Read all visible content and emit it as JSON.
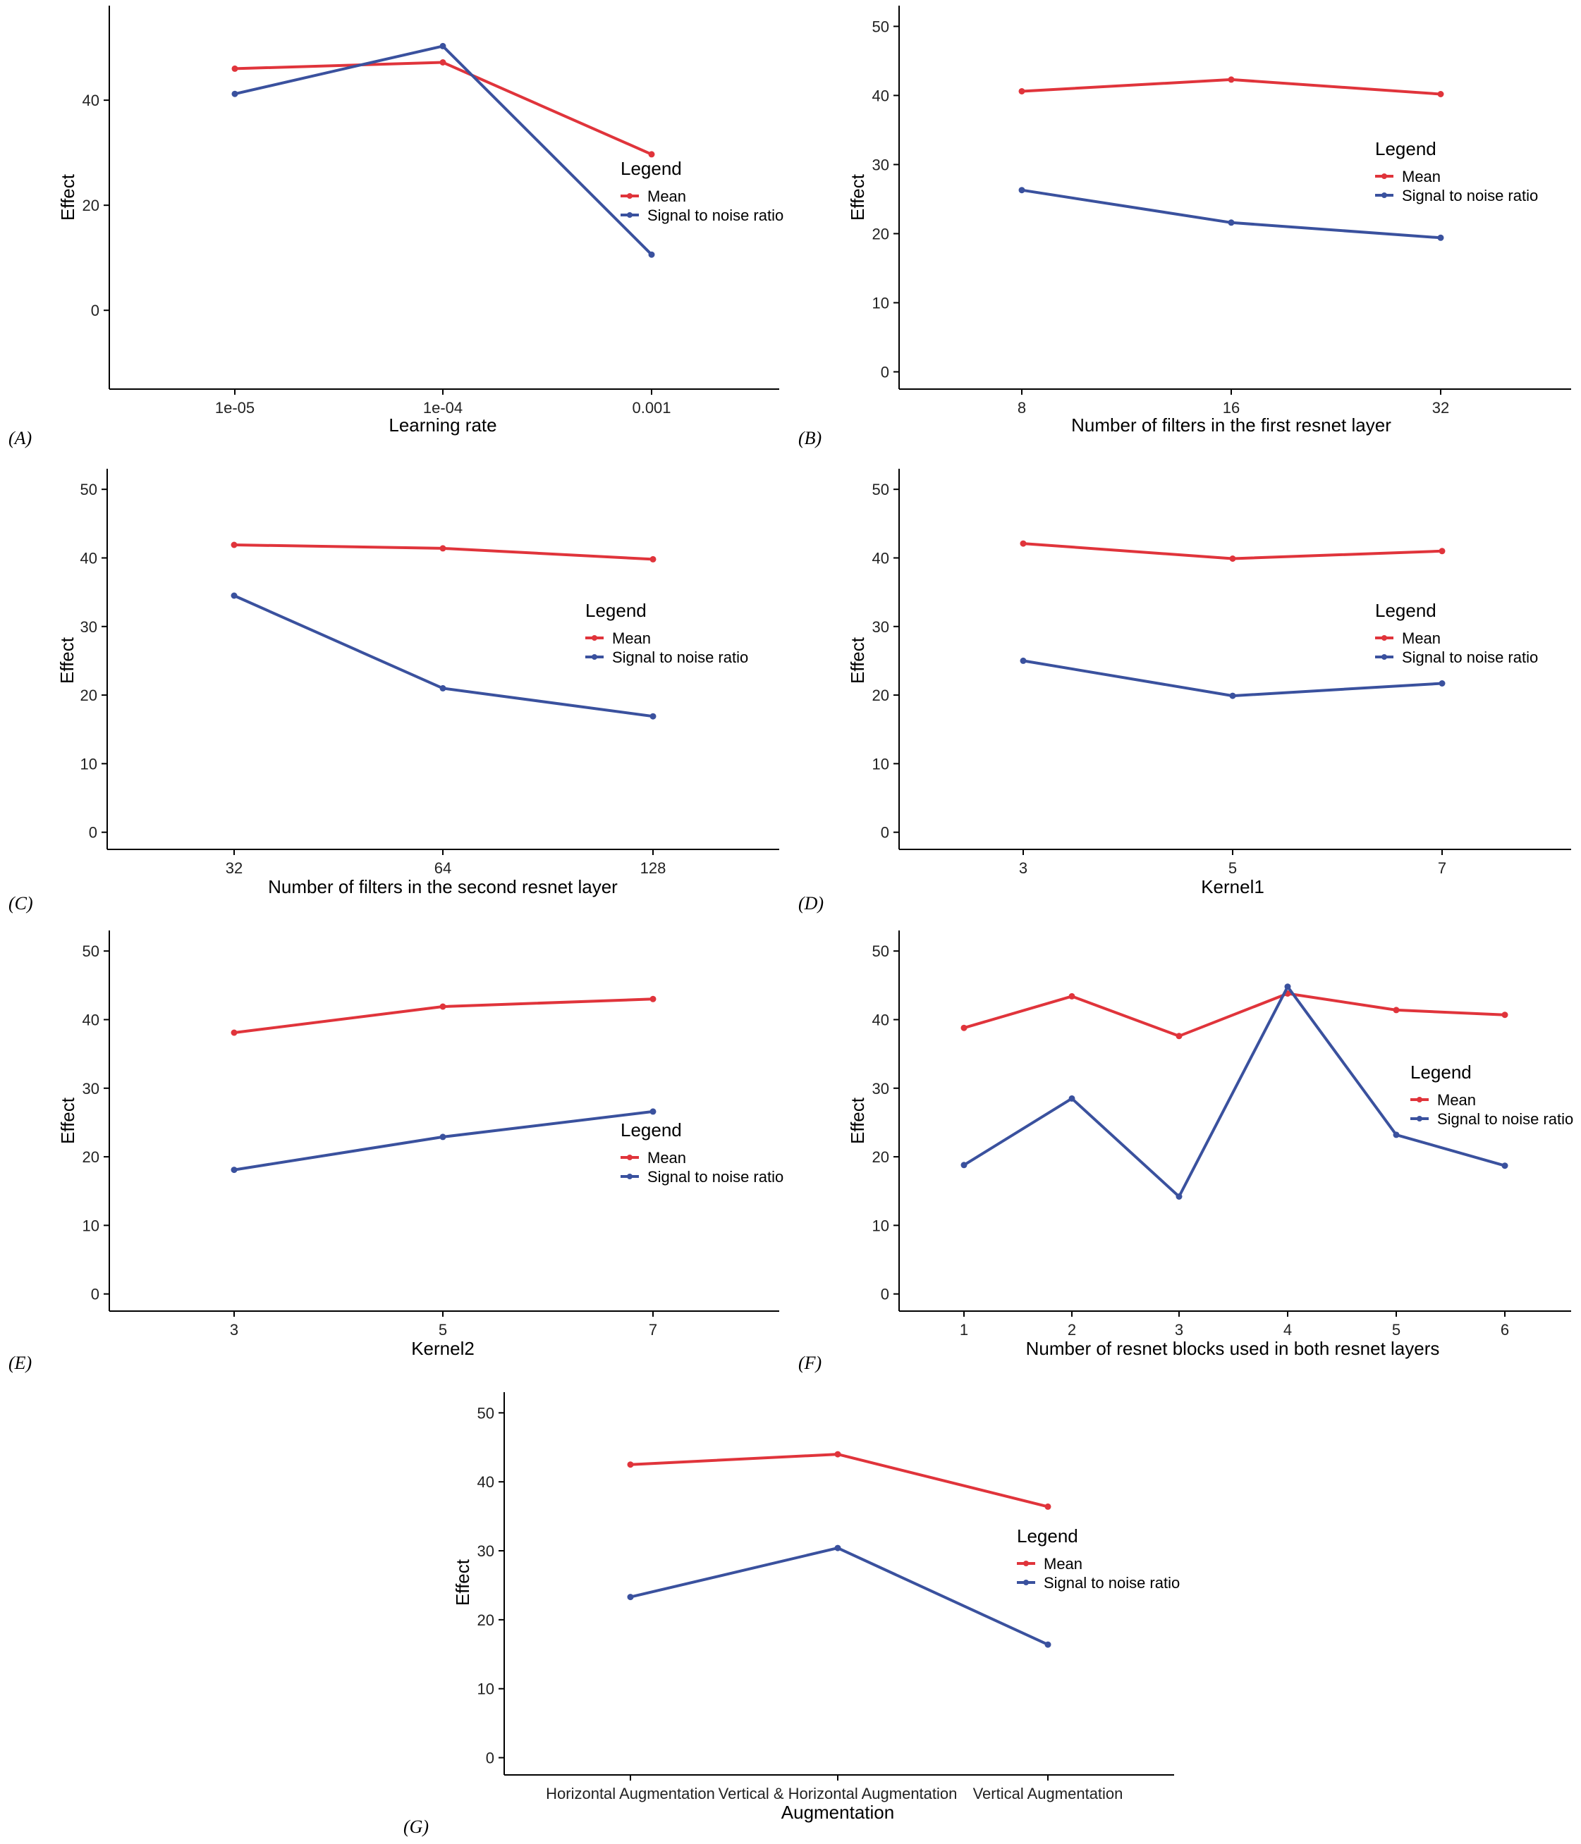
{
  "colors": {
    "mean": "#E0343B",
    "snr": "#3A519E",
    "axis": "#000000"
  },
  "chart_data": [
    {
      "id": "A",
      "panel_label": "(A)",
      "type": "line",
      "xlabel": "Learning rate",
      "ylabel": "Effect",
      "categories": [
        "1e-05",
        "1e-04",
        "0.001"
      ],
      "ylim": [
        -15,
        58
      ],
      "yticks": [
        0,
        20,
        40
      ],
      "legend": {
        "title": "Legend",
        "placement": "right"
      },
      "series": [
        {
          "name": "Mean",
          "color_key": "mean",
          "values": [
            46.0,
            47.2,
            29.7
          ]
        },
        {
          "name": "Signal to noise ratio",
          "color_key": "snr",
          "values": [
            41.2,
            50.3,
            10.6
          ]
        }
      ]
    },
    {
      "id": "B",
      "panel_label": "(B)",
      "type": "line",
      "xlabel": "Number of filters in the first resnet layer",
      "ylabel": "Effect",
      "categories": [
        "8",
        "16",
        "32"
      ],
      "ylim": [
        -2.5,
        53
      ],
      "yticks": [
        0,
        10,
        20,
        30,
        40,
        50
      ],
      "legend": {
        "title": "Legend",
        "placement": "right"
      },
      "series": [
        {
          "name": "Mean",
          "color_key": "mean",
          "values": [
            40.6,
            42.3,
            40.2
          ]
        },
        {
          "name": "Signal to noise ratio",
          "color_key": "snr",
          "values": [
            26.3,
            21.6,
            19.4
          ]
        }
      ]
    },
    {
      "id": "C",
      "panel_label": "(C)",
      "type": "line",
      "xlabel": "Number of filters in the second resnet layer",
      "ylabel": "Effect",
      "categories": [
        "32",
        "64",
        "128"
      ],
      "ylim": [
        -2.5,
        53
      ],
      "yticks": [
        0,
        10,
        20,
        30,
        40,
        50
      ],
      "legend": {
        "title": "Legend",
        "placement": "right"
      },
      "series": [
        {
          "name": "Mean",
          "color_key": "mean",
          "values": [
            41.9,
            41.4,
            39.8
          ]
        },
        {
          "name": "Signal to noise ratio",
          "color_key": "snr",
          "values": [
            34.5,
            21.0,
            16.9
          ]
        }
      ]
    },
    {
      "id": "D",
      "panel_label": "(D)",
      "type": "line",
      "xlabel": "Kernel1",
      "ylabel": "Effect",
      "categories": [
        "3",
        "5",
        "7"
      ],
      "ylim": [
        -2.5,
        53
      ],
      "yticks": [
        0,
        10,
        20,
        30,
        40,
        50
      ],
      "legend": {
        "title": "Legend",
        "placement": "right"
      },
      "series": [
        {
          "name": "Mean",
          "color_key": "mean",
          "values": [
            42.1,
            39.9,
            41.0
          ]
        },
        {
          "name": "Signal to noise ratio",
          "color_key": "snr",
          "values": [
            25.0,
            19.9,
            21.7
          ]
        }
      ]
    },
    {
      "id": "E",
      "panel_label": "(E)",
      "type": "line",
      "xlabel": "Kernel2",
      "ylabel": "Effect",
      "categories": [
        "3",
        "5",
        "7"
      ],
      "ylim": [
        -2.5,
        53
      ],
      "yticks": [
        0,
        10,
        20,
        30,
        40,
        50
      ],
      "legend": {
        "title": "Legend",
        "placement": "right"
      },
      "series": [
        {
          "name": "Mean",
          "color_key": "mean",
          "values": [
            38.1,
            41.9,
            43.0
          ]
        },
        {
          "name": "Signal to noise ratio",
          "color_key": "snr",
          "values": [
            18.1,
            22.9,
            26.6
          ]
        }
      ]
    },
    {
      "id": "F",
      "panel_label": "(F)",
      "type": "line",
      "xlabel": "Number of resnet blocks used in both resnet layers",
      "ylabel": "Effect",
      "categories": [
        "1",
        "2",
        "3",
        "4",
        "5",
        "6"
      ],
      "ylim": [
        -2.5,
        53
      ],
      "yticks": [
        0,
        10,
        20,
        30,
        40,
        50
      ],
      "legend": {
        "title": "Legend",
        "placement": "right"
      },
      "series": [
        {
          "name": "Mean",
          "color_key": "mean",
          "values": [
            38.8,
            43.4,
            37.6,
            43.8,
            41.4,
            40.7
          ]
        },
        {
          "name": "Signal to noise ratio",
          "color_key": "snr",
          "values": [
            18.8,
            28.5,
            14.2,
            44.8,
            23.2,
            18.7
          ]
        }
      ]
    },
    {
      "id": "G",
      "panel_label": "(G)",
      "type": "line",
      "xlabel": "Augmentation",
      "ylabel": "Effect",
      "categories": [
        "Horizontal Augmentation",
        "Vertical & Horizontal Augmentation",
        "Vertical Augmentation"
      ],
      "ylim": [
        -2.5,
        53
      ],
      "yticks": [
        0,
        10,
        20,
        30,
        40,
        50
      ],
      "legend": {
        "title": "Legend",
        "placement": "right"
      },
      "series": [
        {
          "name": "Mean",
          "color_key": "mean",
          "values": [
            42.5,
            44.0,
            36.4
          ]
        },
        {
          "name": "Signal to noise ratio",
          "color_key": "snr",
          "values": [
            23.3,
            30.4,
            16.4
          ]
        }
      ]
    }
  ]
}
